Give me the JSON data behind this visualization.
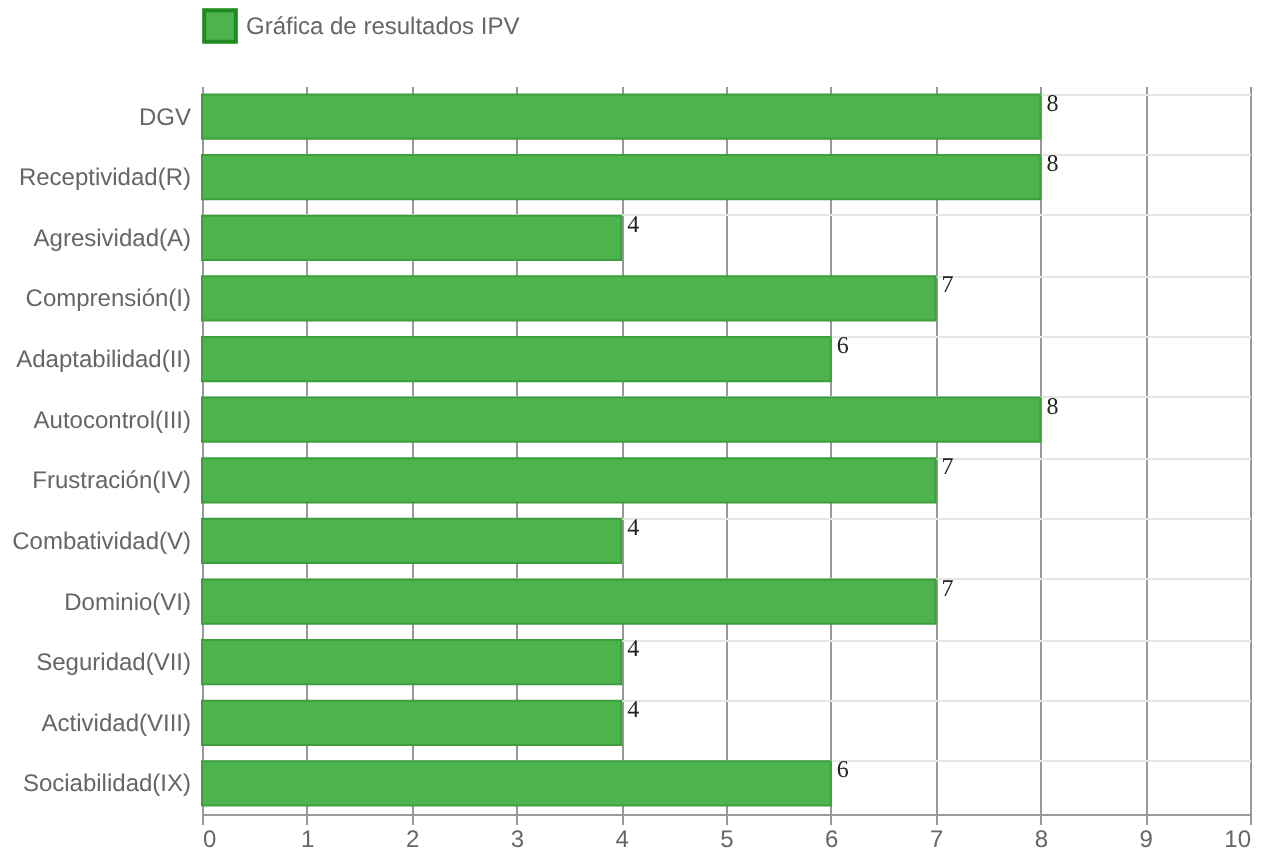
{
  "chart_data": {
    "type": "bar",
    "orientation": "horizontal",
    "categories": [
      "DGV",
      "Receptividad(R)",
      "Agresividad(A)",
      "Comprensión(I)",
      "Adaptabilidad(II)",
      "Autocontrol(III)",
      "Frustración(IV)",
      "Combatividad(V)",
      "Dominio(VI)",
      "Seguridad(VII)",
      "Actividad(VIII)",
      "Sociabilidad(IX)"
    ],
    "series": [
      {
        "name": "Gráfica de resultados IPV",
        "color": "#4db34d",
        "values": [
          8,
          8,
          4,
          7,
          6,
          8,
          7,
          4,
          7,
          4,
          4,
          6
        ]
      }
    ],
    "xlim": [
      0,
      10
    ],
    "xticks": [
      0,
      1,
      2,
      3,
      4,
      5,
      6,
      7,
      8,
      9,
      10
    ],
    "grid": true,
    "legend": "top",
    "data_labels": true
  }
}
